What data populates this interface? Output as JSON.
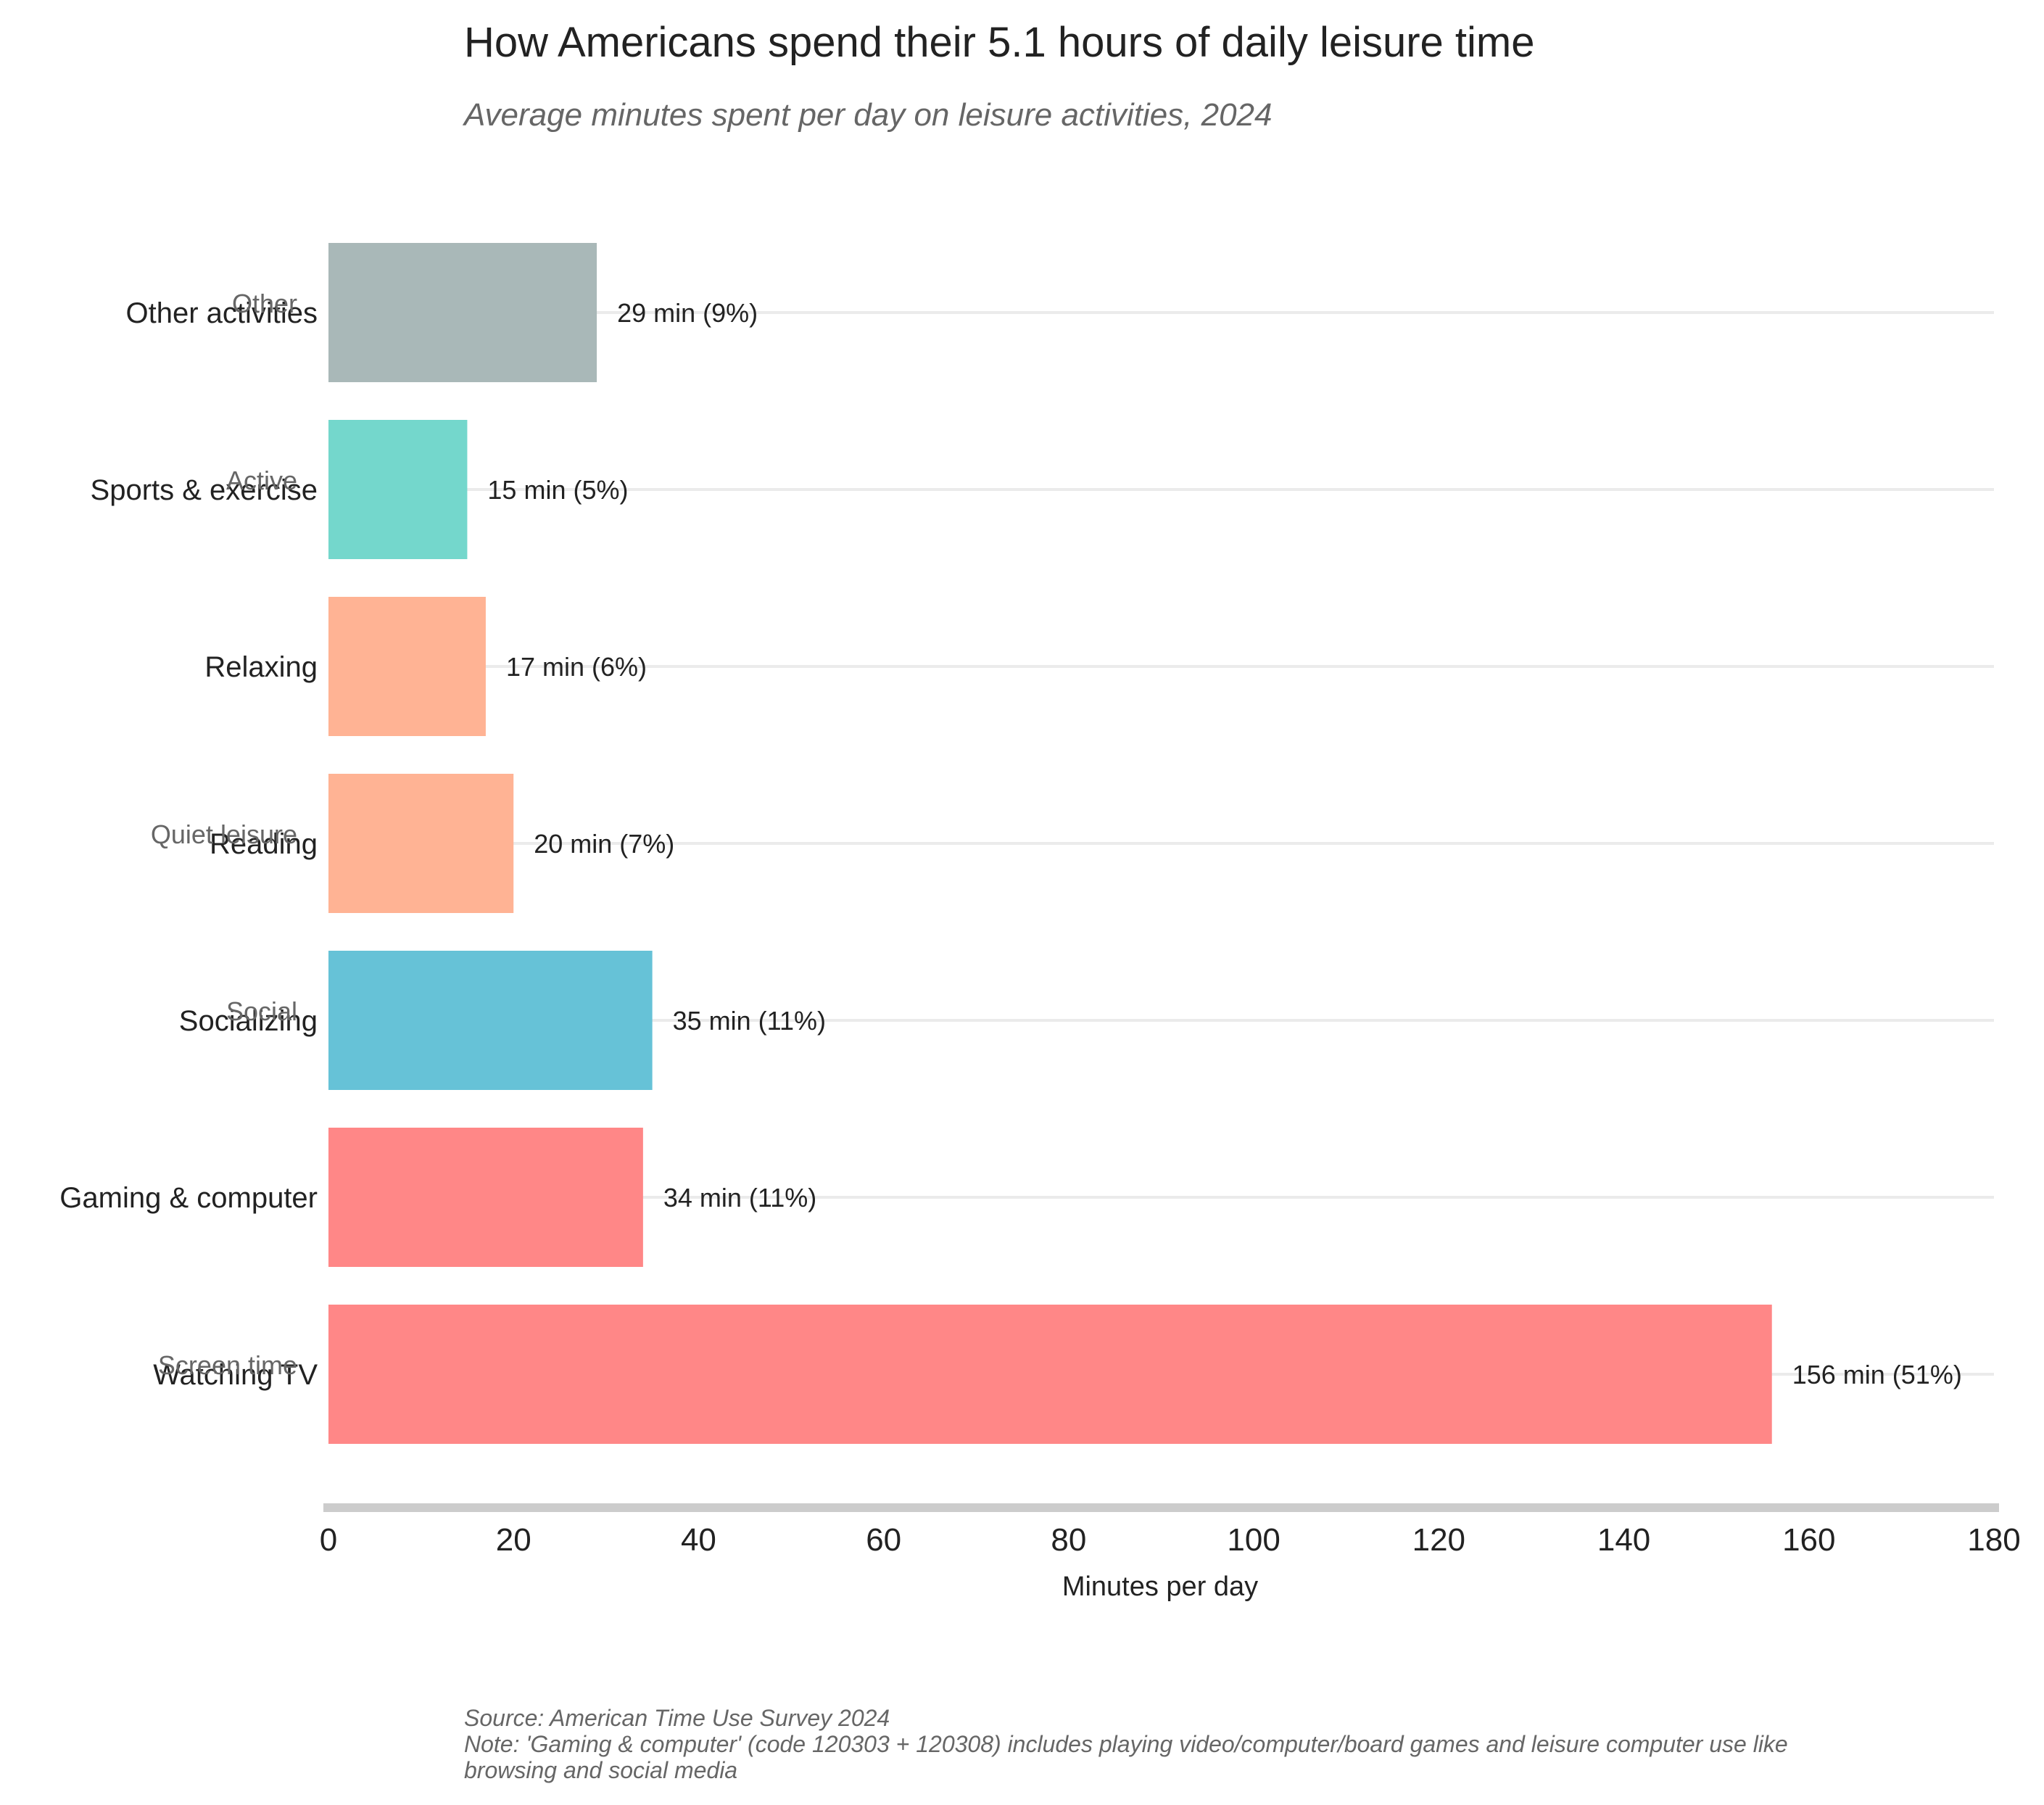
{
  "chart_data": {
    "type": "bar",
    "orientation": "horizontal",
    "title": "How Americans spend their 5.1 hours of daily leisure time",
    "subtitle": "Average minutes spent per day on leisure activities, 2024",
    "xlabel": "Minutes per day",
    "ylabel": "",
    "xlim": [
      0,
      180
    ],
    "x_ticks": [
      0,
      20,
      40,
      60,
      80,
      100,
      120,
      140,
      160,
      180
    ],
    "grid": "horizontal guide lines per bar",
    "categories": [
      "Watching TV",
      "Gaming & computer",
      "Socializing",
      "Reading",
      "Relaxing",
      "Sports & exercise",
      "Other activities"
    ],
    "values": [
      156,
      34,
      35,
      20,
      17,
      15,
      29
    ],
    "value_labels": [
      "156 min (51%)",
      "34 min (11%)",
      "35 min (11%)",
      "20 min (7%)",
      "17 min (6%)",
      "15 min (5%)",
      "29 min (9%)"
    ],
    "bar_colors": [
      "#FF8787",
      "#FF8787",
      "#66C2D7",
      "#FFB394",
      "#FFB394",
      "#74D7CC",
      "#A9B8B8"
    ],
    "groups": [
      {
        "label": "Screen time",
        "category": "Watching TV"
      },
      {
        "label": "Social",
        "category": "Socializing"
      },
      {
        "label": "Quiet leisure",
        "category": "Reading"
      },
      {
        "label": "Active",
        "category": "Sports & exercise"
      },
      {
        "label": "Other",
        "category": "Other activities"
      }
    ],
    "source": "Source: American Time Use Survey 2024",
    "note_lines": [
      "Note: 'Gaming & computer' (code 120303 + 120308) includes playing video/computer/board games and leisure computer use like",
      "browsing and social media"
    ]
  }
}
